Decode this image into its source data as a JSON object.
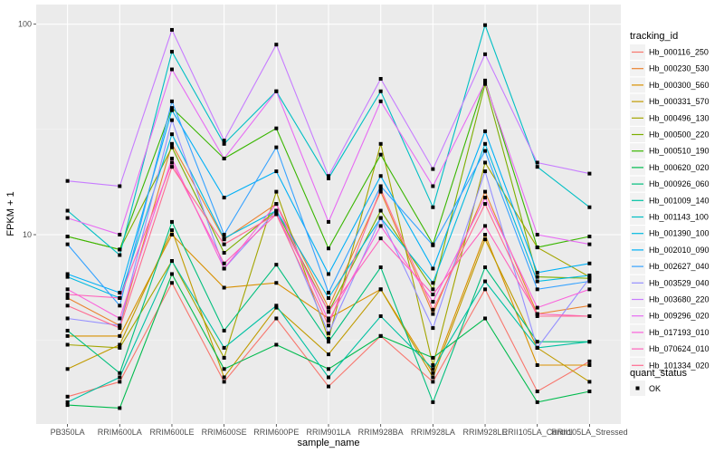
{
  "chart_data": {
    "type": "line",
    "title": "",
    "xlabel": "sample_name",
    "ylabel": "FPKM + 1",
    "yscale": "log10",
    "ylim": [
      1.26,
      124
    ],
    "yticks": [
      10,
      100
    ],
    "ytick_labels": [
      "10",
      "100"
    ],
    "grid": true,
    "categories": [
      "PB350LA",
      "RRIM600LA",
      "RRIM600LE",
      "RRIM600SE",
      "RRIM600PE",
      "RRIM901LA",
      "RRIM928BA",
      "RRIM928LA",
      "RRIM928LE",
      "RRII105LA_Control",
      "RRII105LA_Stressed"
    ],
    "legend": {
      "title": "tracking_id",
      "position": "right",
      "shape_legend_title": "quant_status",
      "shape_legend_items": [
        "OK"
      ]
    },
    "series": [
      {
        "name": "Hb_000116_250",
        "color": "#F8766D",
        "values": [
          1.7,
          2.0,
          5.9,
          2.0,
          4.0,
          1.9,
          3.3,
          2.0,
          5.5,
          1.8,
          2.5
        ]
      },
      {
        "name": "Hb_000230_530",
        "color": "#EA8331",
        "values": [
          5.0,
          3.7,
          27,
          9.5,
          14,
          4.5,
          16,
          4.2,
          16,
          4.2,
          4.6
        ]
      },
      {
        "name": "Hb_000300_560",
        "color": "#D89000",
        "values": [
          3.3,
          3.3,
          10,
          5.6,
          5.9,
          4.0,
          5.5,
          2.2,
          10,
          2.4,
          2.4
        ]
      },
      {
        "name": "Hb_000331_570",
        "color": "#C09B00",
        "values": [
          2.3,
          3.0,
          10.5,
          2.1,
          4.5,
          2.7,
          5.5,
          2.1,
          9.5,
          2.9,
          2.0
        ]
      },
      {
        "name": "Hb_000496_130",
        "color": "#A3A500",
        "values": [
          3.0,
          2.9,
          7.5,
          2.6,
          16,
          3.2,
          27,
          2.4,
          22,
          8.7,
          6.3
        ]
      },
      {
        "name": "Hb_000500_220",
        "color": "#7CAE00",
        "values": [
          9.8,
          8.5,
          26,
          8.2,
          13,
          4.3,
          13,
          5.5,
          52,
          6.3,
          6.2
        ]
      },
      {
        "name": "Hb_000510_190",
        "color": "#39B600",
        "values": [
          9.8,
          8.5,
          40,
          23,
          32,
          8.6,
          24,
          9.0,
          54,
          8.7,
          9.8
        ]
      },
      {
        "name": "Hb_000620_020",
        "color": "#00BB4E",
        "values": [
          1.55,
          1.5,
          6.5,
          2.3,
          3.0,
          2.3,
          3.3,
          2.6,
          4.0,
          1.6,
          1.8
        ]
      },
      {
        "name": "Hb_000926_060",
        "color": "#00BF7D",
        "values": [
          3.5,
          2.2,
          11.5,
          3.5,
          7.2,
          3.1,
          7.0,
          1.6,
          7.0,
          3.1,
          3.1
        ]
      },
      {
        "name": "Hb_001009_140",
        "color": "#00C1A3",
        "values": [
          1.6,
          2.1,
          7.5,
          2.9,
          4.6,
          2.1,
          4.1,
          2.3,
          6.0,
          2.9,
          3.1
        ]
      },
      {
        "name": "Hb_001143_100",
        "color": "#00BFC4",
        "values": [
          13,
          8.0,
          74,
          27,
          48,
          18.5,
          48,
          13.5,
          99,
          21,
          13.5
        ]
      },
      {
        "name": "Hb_001390_100",
        "color": "#00BAE0",
        "values": [
          6.3,
          5.0,
          30,
          9.6,
          13,
          5.0,
          12,
          5.9,
          27,
          6.0,
          6.4
        ]
      },
      {
        "name": "Hb_002010_090",
        "color": "#00B0F6",
        "values": [
          6.5,
          5.3,
          39,
          15,
          20,
          6.5,
          19,
          6.9,
          31,
          6.6,
          7.3
        ]
      },
      {
        "name": "Hb_002627_040",
        "color": "#35A2FF",
        "values": [
          9.0,
          4.6,
          43,
          10,
          26,
          5.3,
          17,
          8.9,
          25,
          5.5,
          6.0
        ]
      },
      {
        "name": "Hb_003529_040",
        "color": "#9590FF",
        "values": [
          4.0,
          3.7,
          35,
          6.9,
          13,
          3.4,
          12,
          3.6,
          20,
          2.9,
          6.2
        ]
      },
      {
        "name": "Hb_003680_220",
        "color": "#C77CFF",
        "values": [
          18,
          17,
          94,
          28,
          80,
          19,
          55,
          20.5,
          72,
          22,
          19.5
        ]
      },
      {
        "name": "Hb_009296_020",
        "color": "#E76BF3",
        "values": [
          12,
          10,
          61,
          23,
          48,
          11.5,
          43,
          17,
          53,
          10,
          9.0
        ]
      },
      {
        "name": "Hb_017193_010",
        "color": "#FA62DB",
        "values": [
          5.5,
          4.0,
          23,
          6.9,
          14,
          3.9,
          11,
          4.8,
          15,
          4.5,
          5.5
        ]
      },
      {
        "name": "Hb_070624_010",
        "color": "#FF62BC",
        "values": [
          5.2,
          5.0,
          22,
          7.3,
          12.5,
          4.3,
          9.6,
          5.2,
          11,
          4.2,
          4.1
        ]
      },
      {
        "name": "Hb_101334_020",
        "color": "#FF6C91",
        "values": [
          4.6,
          3.6,
          21,
          9.0,
          12.5,
          3.7,
          16.5,
          4.4,
          14,
          4.1,
          4.1
        ]
      }
    ]
  }
}
